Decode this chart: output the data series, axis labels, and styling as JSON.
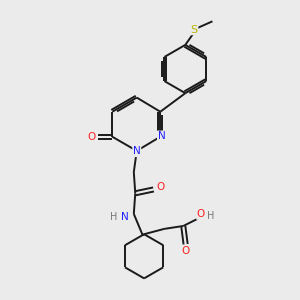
{
  "bg_color": "#ebebeb",
  "bond_color": "#1a1a1a",
  "N_color": "#2020ff",
  "O_color": "#ff2020",
  "S_color": "#b8b800",
  "C_color": "#1a1a1a",
  "font_size": 7.5,
  "line_width": 1.4,
  "xlim": [
    0,
    10
  ],
  "ylim": [
    0,
    10
  ]
}
